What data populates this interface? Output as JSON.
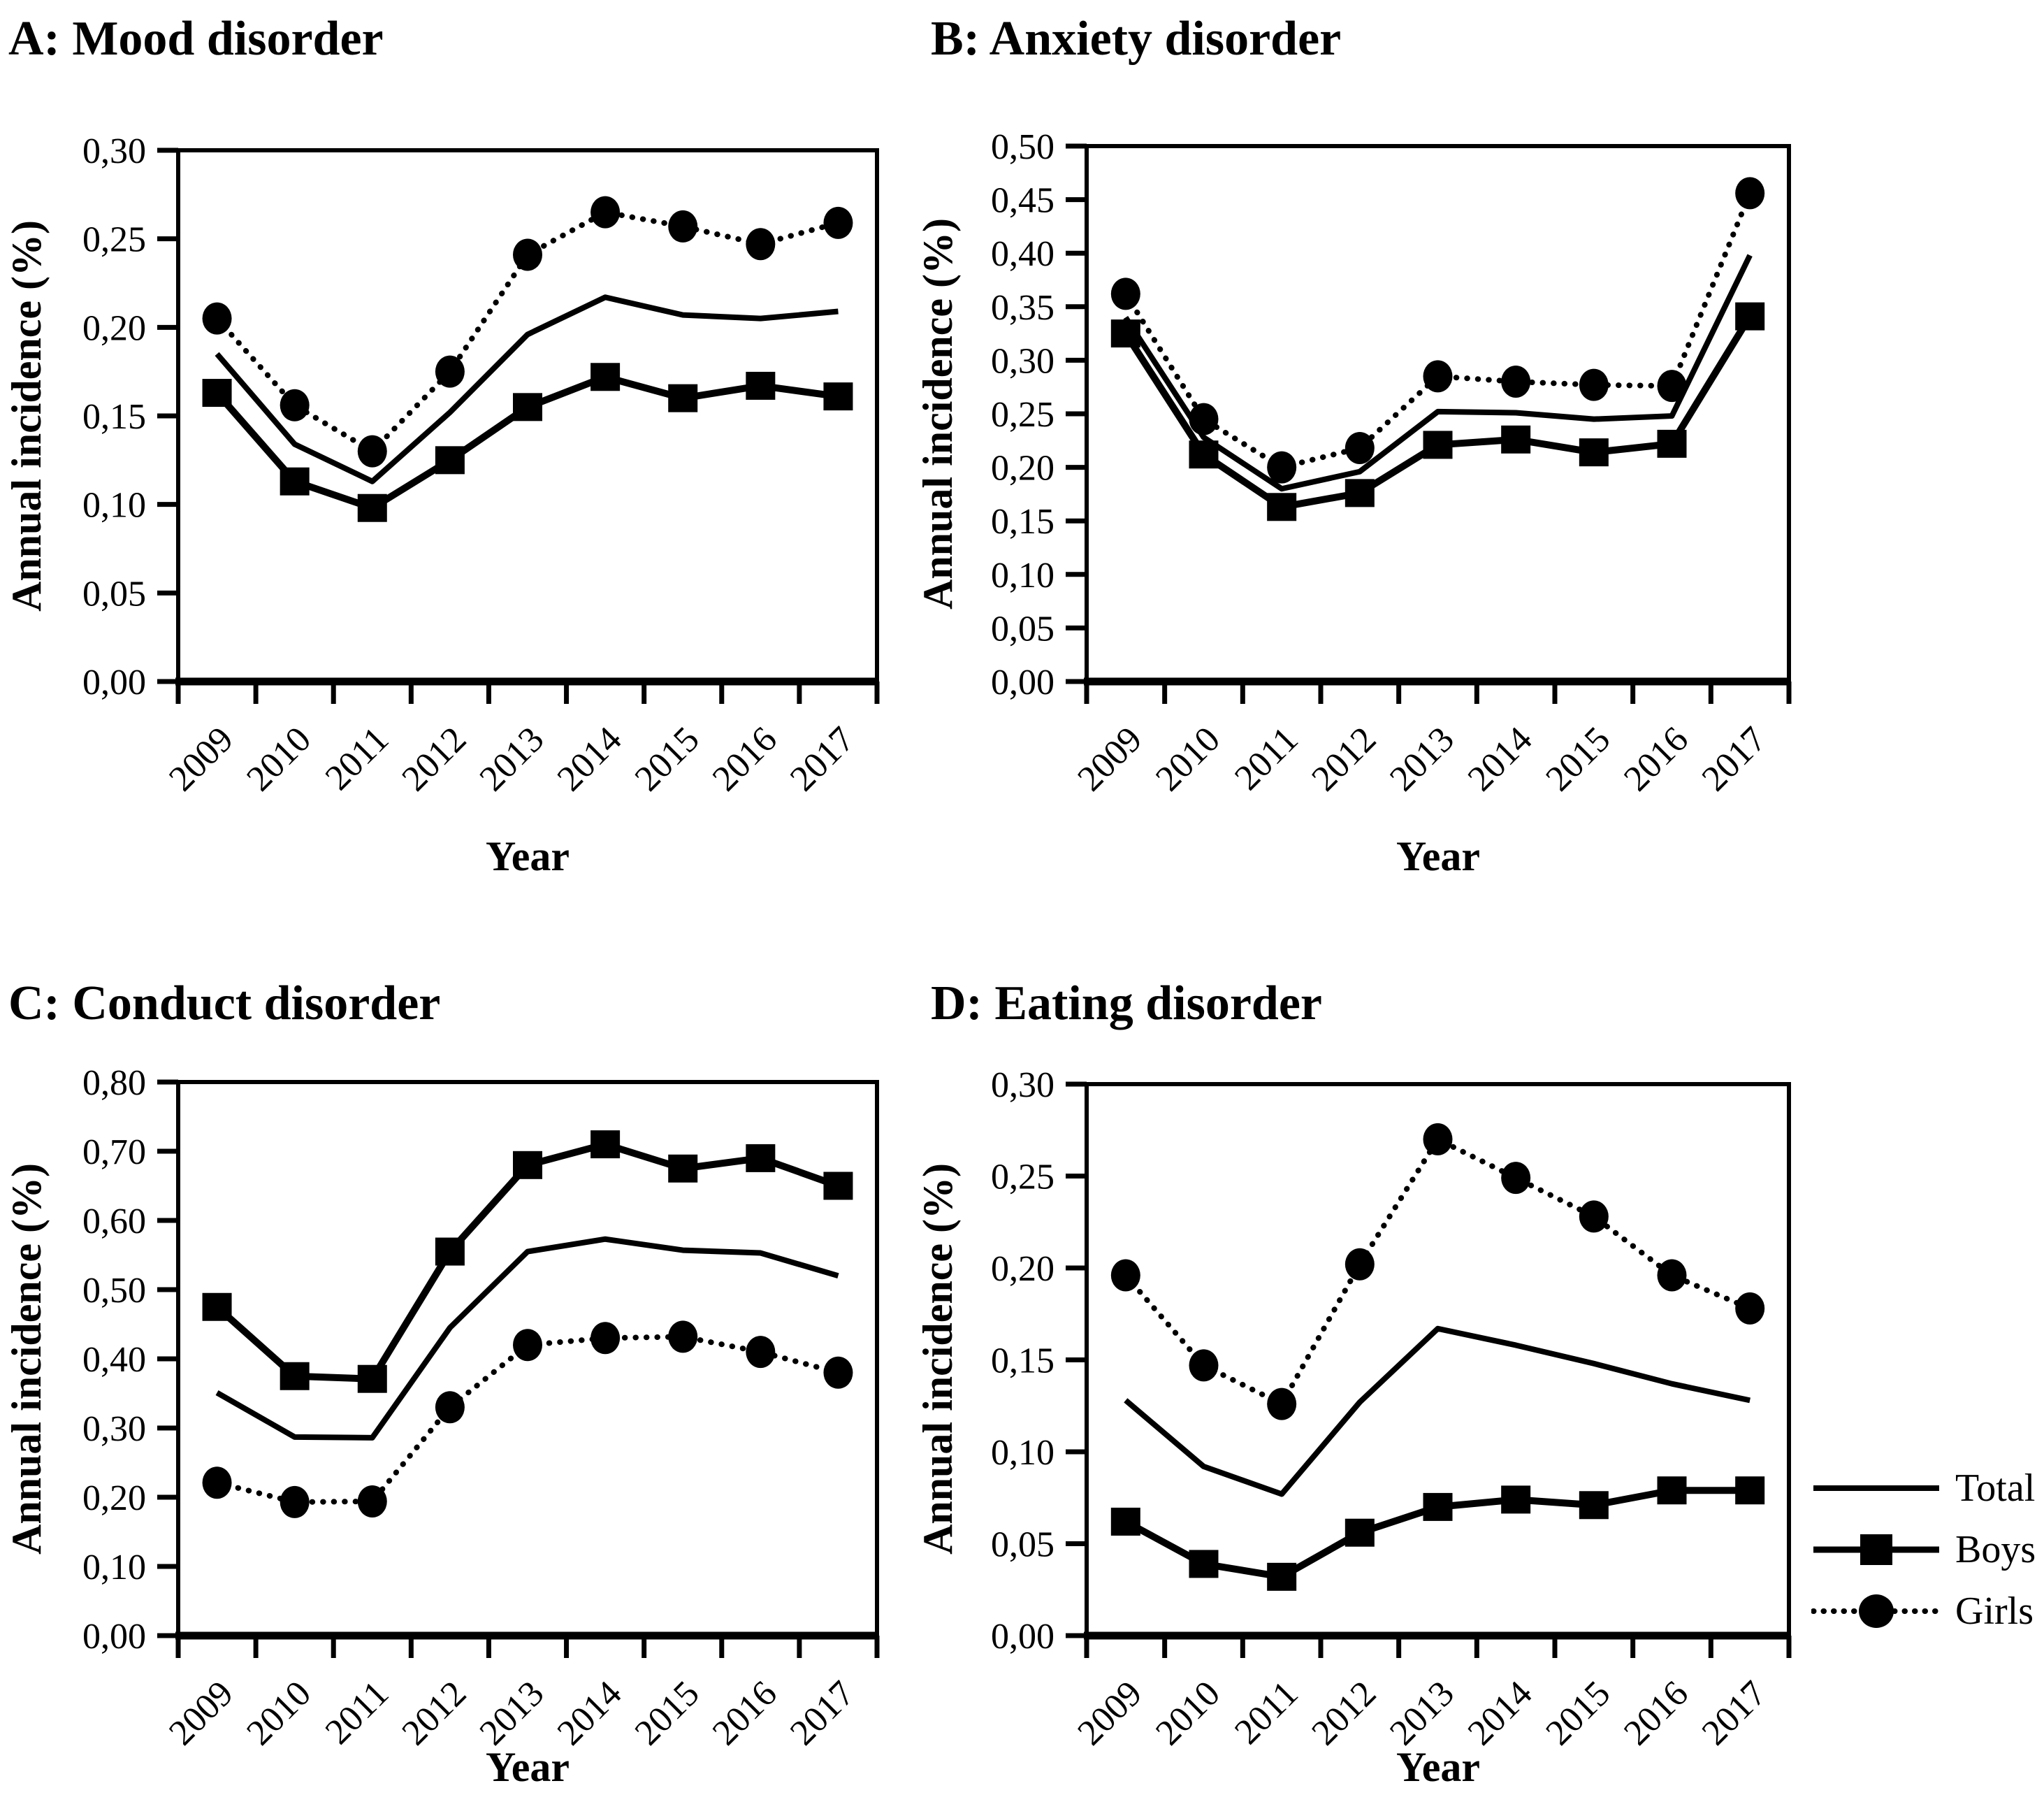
{
  "figure": {
    "legend": [
      {
        "label": "Total",
        "series_key": "Total",
        "swatch": "solid-line"
      },
      {
        "label": "Boys",
        "series_key": "Boys",
        "swatch": "solid-line-square-marker"
      },
      {
        "label": "Girls",
        "series_key": "Girls",
        "swatch": "dotted-line-circle-marker"
      }
    ],
    "colors": {
      "foreground": "#000000",
      "background": "#ffffff"
    },
    "decimal_separator": ","
  },
  "chart_data": [
    {
      "panel": "A",
      "type": "line",
      "title": "A: Mood disorder",
      "xlabel": "Year",
      "ylabel": "Annual incidence (%)",
      "categories": [
        "2009",
        "2010",
        "2011",
        "2012",
        "2013",
        "2014",
        "2015",
        "2016",
        "2017"
      ],
      "ylim": [
        0,
        0.3
      ],
      "ytick_labels": [
        "0,00",
        "0,05",
        "0,10",
        "0,15",
        "0,20",
        "0,25",
        "0,30"
      ],
      "grid": false,
      "series": [
        {
          "name": "Total",
          "line": "solid",
          "marker": "none",
          "values": [
            0.185,
            0.134,
            0.113,
            0.152,
            0.196,
            0.217,
            0.207,
            0.205,
            0.209
          ]
        },
        {
          "name": "Boys",
          "line": "solid",
          "marker": "square",
          "values": [
            0.163,
            0.113,
            0.098,
            0.125,
            0.155,
            0.172,
            0.16,
            0.167,
            0.161
          ]
        },
        {
          "name": "Girls",
          "line": "dotted",
          "marker": "circle",
          "values": [
            0.205,
            0.156,
            0.13,
            0.175,
            0.241,
            0.265,
            0.257,
            0.247,
            0.259
          ]
        }
      ]
    },
    {
      "panel": "B",
      "type": "line",
      "title": "B: Anxiety disorder",
      "xlabel": "Year",
      "ylabel": "Annual incidence (%)",
      "categories": [
        "2009",
        "2010",
        "2011",
        "2012",
        "2013",
        "2014",
        "2015",
        "2016",
        "2017"
      ],
      "ylim": [
        0,
        0.5
      ],
      "ytick_labels": [
        "0,00",
        "0,05",
        "0,10",
        "0,15",
        "0,20",
        "0,25",
        "0,30",
        "0,35",
        "0,40",
        "0,45",
        "0,50"
      ],
      "grid": false,
      "series": [
        {
          "name": "Total",
          "line": "solid",
          "marker": "none",
          "values": [
            0.34,
            0.228,
            0.18,
            0.196,
            0.252,
            0.251,
            0.245,
            0.248,
            0.398
          ]
        },
        {
          "name": "Boys",
          "line": "solid",
          "marker": "square",
          "values": [
            0.325,
            0.212,
            0.163,
            0.176,
            0.221,
            0.226,
            0.214,
            0.222,
            0.341
          ]
        },
        {
          "name": "Girls",
          "line": "dotted",
          "marker": "circle",
          "values": [
            0.362,
            0.245,
            0.2,
            0.218,
            0.285,
            0.28,
            0.277,
            0.276,
            0.456
          ]
        }
      ]
    },
    {
      "panel": "C",
      "type": "line",
      "title": "C: Conduct disorder",
      "xlabel": "Year",
      "ylabel": "Annual incidence (%)",
      "categories": [
        "2009",
        "2010",
        "2011",
        "2012",
        "2013",
        "2014",
        "2015",
        "2016",
        "2017"
      ],
      "ylim": [
        0,
        0.8
      ],
      "ytick_labels": [
        "0,00",
        "0,10",
        "0,20",
        "0,30",
        "0,40",
        "0,50",
        "0,60",
        "0,70",
        "0,80"
      ],
      "grid": false,
      "series": [
        {
          "name": "Total",
          "line": "solid",
          "marker": "none",
          "values": [
            0.351,
            0.287,
            0.286,
            0.445,
            0.555,
            0.573,
            0.557,
            0.553,
            0.52
          ]
        },
        {
          "name": "Boys",
          "line": "solid",
          "marker": "square",
          "values": [
            0.475,
            0.375,
            0.371,
            0.555,
            0.68,
            0.71,
            0.675,
            0.69,
            0.65
          ]
        },
        {
          "name": "Girls",
          "line": "dotted",
          "marker": "circle",
          "values": [
            0.221,
            0.193,
            0.194,
            0.33,
            0.42,
            0.43,
            0.432,
            0.41,
            0.38
          ]
        }
      ]
    },
    {
      "panel": "D",
      "type": "line",
      "title": "D: Eating disorder",
      "xlabel": "Year",
      "ylabel": "Annual incidence (%)",
      "categories": [
        "2009",
        "2010",
        "2011",
        "2012",
        "2013",
        "2014",
        "2015",
        "2016",
        "2017"
      ],
      "ylim": [
        0,
        0.3
      ],
      "ytick_labels": [
        "0,00",
        "0,05",
        "0,10",
        "0,15",
        "0,20",
        "0,25",
        "0,30"
      ],
      "grid": false,
      "series": [
        {
          "name": "Total",
          "line": "solid",
          "marker": "none",
          "values": [
            0.128,
            0.092,
            0.077,
            0.127,
            0.167,
            0.158,
            0.148,
            0.137,
            0.128
          ]
        },
        {
          "name": "Boys",
          "line": "solid",
          "marker": "square",
          "values": [
            0.062,
            0.039,
            0.032,
            0.056,
            0.07,
            0.074,
            0.071,
            0.079,
            0.079
          ]
        },
        {
          "name": "Girls",
          "line": "dotted",
          "marker": "circle",
          "values": [
            0.196,
            0.147,
            0.126,
            0.202,
            0.27,
            0.249,
            0.228,
            0.196,
            0.178
          ]
        }
      ]
    }
  ]
}
